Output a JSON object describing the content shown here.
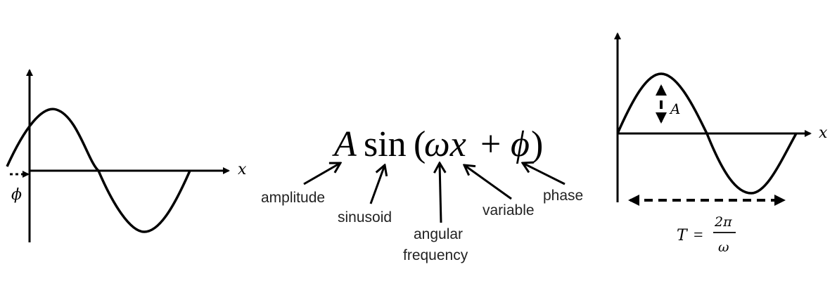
{
  "left_graph": {
    "x_axis_label": "x",
    "phase_label": "ϕ"
  },
  "formula": {
    "A": "A",
    "sin": "sin",
    "open": "(",
    "omega_x": "ωx",
    "plus": "+",
    "phi": "ϕ",
    "close": ")"
  },
  "annotations": {
    "amplitude": "amplitude",
    "sinusoid": "sinusoid",
    "angular_1": "angular",
    "angular_2": "frequency",
    "variable": "variable",
    "phase": "phase"
  },
  "right_graph": {
    "x_axis_label": "x",
    "amplitude_label": "A",
    "period_T": "T",
    "period_eq": "=",
    "period_num": "2π",
    "period_den": "ω"
  }
}
